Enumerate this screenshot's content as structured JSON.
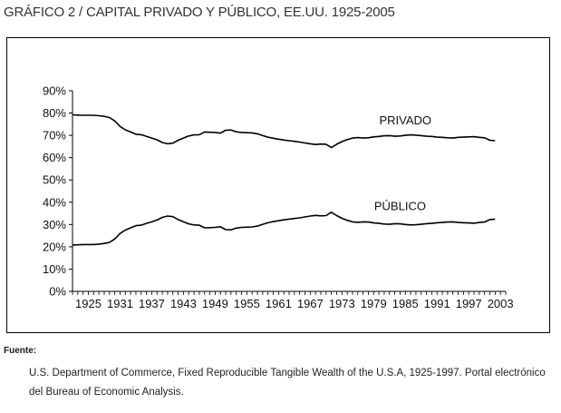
{
  "header": {
    "title": "GRÁFICO 2 / CAPITAL PRIVADO Y PÚBLICO, EE.UU. 1925-2005"
  },
  "source": {
    "label": "Fuente:",
    "text": "U.S. Department of Commerce, Fixed Reproducible Tangible Wealth of the U.S.A, 1925-1997. Portal electrónico del Bureau of Economic Analysis."
  },
  "colors": {
    "line": "#000000",
    "axis": "#000000"
  },
  "chart_data": {
    "type": "line",
    "title": "GRÁFICO 2 / CAPITAL PRIVADO Y PÚBLICO, EE.UU. 1925-2005",
    "xlabel": "",
    "ylabel": "",
    "xlim": [
      1922,
      2004
    ],
    "ylim": [
      0,
      90
    ],
    "x_ticks": [
      1925,
      1931,
      1937,
      1943,
      1949,
      1955,
      1961,
      1967,
      1973,
      1979,
      1985,
      1991,
      1997,
      2003
    ],
    "y_ticks": [
      0,
      10,
      20,
      30,
      40,
      50,
      60,
      70,
      80,
      90
    ],
    "y_tick_labels": [
      "0%",
      "10%",
      "20%",
      "30%",
      "40%",
      "50%",
      "60%",
      "70%",
      "80%",
      "90%"
    ],
    "grid": false,
    "legend": "none",
    "series": [
      {
        "name": "PRIVADO",
        "x": [
          1922,
          1923,
          1924,
          1925,
          1926,
          1927,
          1928,
          1929,
          1930,
          1931,
          1932,
          1933,
          1934,
          1935,
          1936,
          1937,
          1938,
          1939,
          1940,
          1941,
          1942,
          1943,
          1944,
          1945,
          1946,
          1947,
          1948,
          1949,
          1950,
          1951,
          1952,
          1953,
          1954,
          1955,
          1956,
          1957,
          1958,
          1959,
          1960,
          1961,
          1962,
          1963,
          1964,
          1965,
          1966,
          1967,
          1968,
          1969,
          1970,
          1971,
          1972,
          1973,
          1974,
          1975,
          1976,
          1977,
          1978,
          1979,
          1980,
          1981,
          1982,
          1983,
          1984,
          1985,
          1986,
          1987,
          1988,
          1989,
          1990,
          1991,
          1992,
          1993,
          1994,
          1995,
          1996,
          1997,
          1998,
          1999,
          2000,
          2001,
          2002
        ],
        "values": [
          79.2,
          79.1,
          79,
          79,
          79,
          78.8,
          78.5,
          78,
          76.5,
          74,
          72.5,
          71.5,
          70.5,
          70.3,
          69.5,
          68.8,
          68,
          66.8,
          66.2,
          66.5,
          67.8,
          68.8,
          69.7,
          70.2,
          70.3,
          71.5,
          71.4,
          71.3,
          71,
          72.3,
          72.4,
          71.6,
          71.3,
          71.2,
          71.1,
          70.7,
          69.9,
          69.2,
          68.7,
          68.3,
          67.9,
          67.6,
          67.3,
          67,
          66.6,
          66.2,
          65.9,
          66.1,
          66,
          64.5,
          66,
          67.2,
          68.1,
          68.8,
          69,
          68.8,
          68.9,
          69.3,
          69.5,
          69.8,
          69.9,
          69.6,
          69.7,
          70,
          70.2,
          70.1,
          69.9,
          69.6,
          69.5,
          69.2,
          69.1,
          68.9,
          68.8,
          69.1,
          69.2,
          69.3,
          69.4,
          69.1,
          68.9,
          67.8,
          67.6
        ]
      },
      {
        "name": "PÚBLICO",
        "x": [
          1922,
          1923,
          1924,
          1925,
          1926,
          1927,
          1928,
          1929,
          1930,
          1931,
          1932,
          1933,
          1934,
          1935,
          1936,
          1937,
          1938,
          1939,
          1940,
          1941,
          1942,
          1943,
          1944,
          1945,
          1946,
          1947,
          1948,
          1949,
          1950,
          1951,
          1952,
          1953,
          1954,
          1955,
          1956,
          1957,
          1958,
          1959,
          1960,
          1961,
          1962,
          1963,
          1964,
          1965,
          1966,
          1967,
          1968,
          1969,
          1970,
          1971,
          1972,
          1973,
          1974,
          1975,
          1976,
          1977,
          1978,
          1979,
          1980,
          1981,
          1982,
          1983,
          1984,
          1985,
          1986,
          1987,
          1988,
          1989,
          1990,
          1991,
          1992,
          1993,
          1994,
          1995,
          1996,
          1997,
          1998,
          1999,
          2000,
          2001,
          2002
        ],
        "values": [
          20.8,
          20.9,
          21,
          21,
          21,
          21.2,
          21.5,
          22,
          23.5,
          26,
          27.5,
          28.5,
          29.5,
          29.7,
          30.5,
          31.2,
          32,
          33.2,
          33.8,
          33.5,
          32.2,
          31.2,
          30.3,
          29.8,
          29.7,
          28.5,
          28.6,
          28.7,
          29,
          27.7,
          27.6,
          28.4,
          28.7,
          28.8,
          28.9,
          29.3,
          30.1,
          30.8,
          31.3,
          31.7,
          32.1,
          32.4,
          32.7,
          33,
          33.4,
          33.8,
          34.1,
          33.9,
          34,
          35.5,
          34,
          32.8,
          31.9,
          31.2,
          31,
          31.2,
          31.1,
          30.7,
          30.5,
          30.2,
          30.1,
          30.4,
          30.3,
          30,
          29.8,
          29.9,
          30.1,
          30.4,
          30.5,
          30.8,
          30.9,
          31.1,
          31.2,
          30.9,
          30.8,
          30.7,
          30.6,
          30.9,
          31.1,
          32.2,
          32.4
        ]
      }
    ],
    "annotations": [
      {
        "text": "PRIVADO",
        "x": 1985,
        "y": 75
      },
      {
        "text": "PÚBLICO",
        "x": 1984,
        "y": 36.5
      }
    ]
  }
}
